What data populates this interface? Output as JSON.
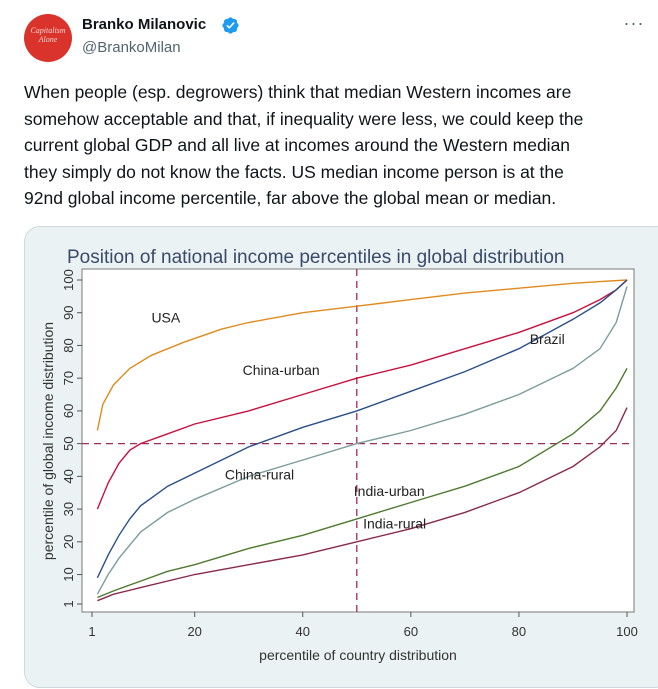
{
  "author": {
    "avatar_text": "Capitalism Alone",
    "name": "Branko Milanovic",
    "handle": "@BrankoMilan",
    "verified_icon": "verified-badge-icon",
    "more_icon": "more-dots-icon"
  },
  "tweet": {
    "text": "When people (esp. degrowers) think that median Western incomes are\nsomehow acceptable and that, if inequality were less, we could keep the\ncurrent global GDP and all live at incomes around the Western median\nthey simply do not know the facts. US median income person is at the\n92nd global income percentile, far above the global mean or median."
  },
  "colors": {
    "verified": "#1d9bf0",
    "chart_bg": "#eaf2f3",
    "reference_line": "#9e2a5a"
  },
  "chart_data": {
    "type": "line",
    "title": "Position of national income percentiles in global distribution",
    "xlabel": "percentile of country distribution",
    "ylabel": "percentile of global income distribution",
    "xlim": [
      1,
      100
    ],
    "ylim": [
      1,
      100
    ],
    "xticks": [
      1,
      20,
      40,
      60,
      80,
      100
    ],
    "yticks": [
      1,
      10,
      20,
      30,
      40,
      50,
      60,
      70,
      80,
      90,
      100
    ],
    "reference_lines": {
      "x": 50,
      "y": 50
    },
    "grid": false,
    "series": [
      {
        "name": "USA",
        "color": "#e08a1e",
        "points": [
          [
            2,
            54
          ],
          [
            3,
            62
          ],
          [
            5,
            68
          ],
          [
            8,
            73
          ],
          [
            12,
            77
          ],
          [
            18,
            81
          ],
          [
            25,
            85
          ],
          [
            30,
            87
          ],
          [
            40,
            90
          ],
          [
            50,
            92
          ],
          [
            60,
            94
          ],
          [
            70,
            96
          ],
          [
            80,
            97.5
          ],
          [
            90,
            99
          ],
          [
            95,
            99.5
          ],
          [
            100,
            100
          ]
        ]
      },
      {
        "name": "Brazil",
        "color": "#c8103f",
        "points": [
          [
            2,
            30
          ],
          [
            4,
            38
          ],
          [
            6,
            44
          ],
          [
            8,
            48
          ],
          [
            10,
            50
          ],
          [
            15,
            53
          ],
          [
            20,
            56
          ],
          [
            30,
            60
          ],
          [
            40,
            65
          ],
          [
            50,
            70
          ],
          [
            60,
            74
          ],
          [
            70,
            79
          ],
          [
            80,
            84
          ],
          [
            90,
            90
          ],
          [
            95,
            94
          ],
          [
            98,
            97
          ],
          [
            100,
            100
          ]
        ]
      },
      {
        "name": "China-urban",
        "color": "#2a4f8a",
        "points": [
          [
            2,
            9
          ],
          [
            4,
            16
          ],
          [
            6,
            22
          ],
          [
            8,
            27
          ],
          [
            10,
            31
          ],
          [
            15,
            37
          ],
          [
            20,
            41
          ],
          [
            30,
            49
          ],
          [
            40,
            55
          ],
          [
            50,
            60
          ],
          [
            60,
            66
          ],
          [
            70,
            72
          ],
          [
            80,
            79
          ],
          [
            90,
            88
          ],
          [
            95,
            93
          ],
          [
            98,
            97
          ],
          [
            100,
            100
          ]
        ]
      },
      {
        "name": "China-rural",
        "color": "#7d9c9c",
        "points": [
          [
            2,
            4
          ],
          [
            4,
            10
          ],
          [
            6,
            15
          ],
          [
            8,
            19
          ],
          [
            10,
            23
          ],
          [
            15,
            29
          ],
          [
            20,
            33
          ],
          [
            30,
            40
          ],
          [
            40,
            45
          ],
          [
            50,
            50
          ],
          [
            60,
            54
          ],
          [
            70,
            59
          ],
          [
            80,
            65
          ],
          [
            90,
            73
          ],
          [
            95,
            79
          ],
          [
            98,
            87
          ],
          [
            100,
            98
          ]
        ]
      },
      {
        "name": "India-urban",
        "color": "#4f7a30",
        "points": [
          [
            2,
            3
          ],
          [
            5,
            5
          ],
          [
            10,
            8
          ],
          [
            15,
            11
          ],
          [
            20,
            13
          ],
          [
            30,
            18
          ],
          [
            40,
            22
          ],
          [
            50,
            27
          ],
          [
            60,
            32
          ],
          [
            70,
            37
          ],
          [
            80,
            43
          ],
          [
            90,
            53
          ],
          [
            95,
            60
          ],
          [
            98,
            67
          ],
          [
            100,
            73
          ]
        ]
      },
      {
        "name": "India-rural",
        "color": "#8a2a4a",
        "points": [
          [
            2,
            2
          ],
          [
            5,
            4
          ],
          [
            10,
            6
          ],
          [
            20,
            10
          ],
          [
            30,
            13
          ],
          [
            40,
            16
          ],
          [
            50,
            20
          ],
          [
            60,
            24
          ],
          [
            70,
            29
          ],
          [
            80,
            35
          ],
          [
            90,
            43
          ],
          [
            95,
            49
          ],
          [
            98,
            54
          ],
          [
            100,
            61
          ]
        ]
      }
    ]
  }
}
